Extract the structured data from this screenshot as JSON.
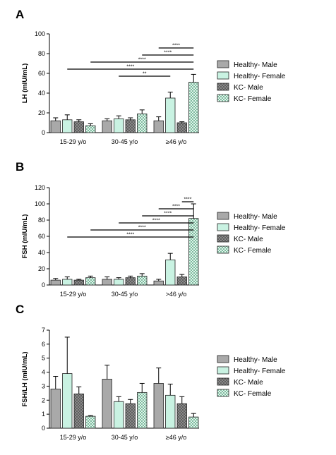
{
  "colors": {
    "healthy_male": "#a9a9a9",
    "healthy_female": "#c9f2e2",
    "kc_male": "#6c6c6c",
    "kc_female": "#c6e8d8",
    "axis": "#000000"
  },
  "legend": [
    {
      "label": "Healthy- Male",
      "style": "healthy_male"
    },
    {
      "label": "Healthy- Female",
      "style": "healthy_female"
    },
    {
      "label": "KC- Male",
      "style": "kc_male"
    },
    {
      "label": "KC- Female",
      "style": "kc_female"
    }
  ],
  "chart_data": [
    {
      "panel": "A",
      "type": "bar",
      "ylabel": "LH (mIU/mL)",
      "ylim": [
        0,
        100
      ],
      "yticks": [
        0,
        20,
        40,
        60,
        80,
        100
      ],
      "categories": [
        "15-29 y/o",
        "30-45 y/o",
        "≥46 y/o"
      ],
      "series": [
        {
          "name": "Healthy- Male",
          "values": [
            12,
            12,
            12
          ],
          "errors": [
            3,
            2,
            4
          ]
        },
        {
          "name": "Healthy- Female",
          "values": [
            13,
            14,
            35
          ],
          "errors": [
            5,
            3,
            6
          ]
        },
        {
          "name": "KC- Male",
          "values": [
            11,
            13,
            10
          ],
          "errors": [
            2,
            2,
            1
          ]
        },
        {
          "name": "KC- Female",
          "values": [
            7,
            19,
            51
          ],
          "errors": [
            2,
            4,
            8
          ]
        }
      ],
      "significance": [
        {
          "label": "****",
          "from": [
            2,
            0
          ],
          "to": [
            2,
            3
          ]
        },
        {
          "label": "****",
          "from": [
            1,
            3
          ],
          "to": [
            2,
            3
          ]
        },
        {
          "label": "****",
          "from": [
            0,
            3
          ],
          "to": [
            2,
            3
          ]
        },
        {
          "label": "****",
          "from": [
            0,
            1
          ],
          "to": [
            2,
            3
          ]
        },
        {
          "label": "**",
          "from": [
            1,
            1
          ],
          "to": [
            2,
            1
          ]
        }
      ]
    },
    {
      "panel": "B",
      "type": "bar",
      "ylabel": "FSH (mIU/mL)",
      "ylim": [
        0,
        120
      ],
      "yticks": [
        0,
        20,
        40,
        60,
        80,
        100,
        120
      ],
      "categories": [
        "15-29 y/o",
        "30-45 y/o",
        ">46 y/o"
      ],
      "series": [
        {
          "name": "Healthy- Male",
          "values": [
            6,
            7,
            5
          ],
          "errors": [
            2,
            3,
            2
          ]
        },
        {
          "name": "Healthy- Female",
          "values": [
            7,
            7,
            31
          ],
          "errors": [
            3,
            2,
            8
          ]
        },
        {
          "name": "KC- Male",
          "values": [
            6,
            9,
            10
          ],
          "errors": [
            1,
            2,
            3
          ]
        },
        {
          "name": "KC- Female",
          "values": [
            9,
            11,
            82
          ],
          "errors": [
            2,
            3,
            18
          ]
        }
      ],
      "significance": [
        {
          "label": "****",
          "from": [
            2,
            2
          ],
          "to": [
            2,
            3
          ]
        },
        {
          "label": "****",
          "from": [
            2,
            0
          ],
          "to": [
            2,
            3
          ]
        },
        {
          "label": "****",
          "from": [
            1,
            3
          ],
          "to": [
            2,
            3
          ]
        },
        {
          "label": "****",
          "from": [
            1,
            1
          ],
          "to": [
            2,
            3
          ]
        },
        {
          "label": "****",
          "from": [
            0,
            3
          ],
          "to": [
            2,
            3
          ]
        },
        {
          "label": "****",
          "from": [
            0,
            1
          ],
          "to": [
            2,
            3
          ]
        }
      ]
    },
    {
      "panel": "C",
      "type": "bar",
      "ylabel": "FSH/LH (mIU/mL)",
      "ylim": [
        0,
        7
      ],
      "yticks": [
        0,
        1,
        2,
        3,
        4,
        5,
        6,
        7
      ],
      "categories": [
        "15-29 y/o",
        "30-45 y/o",
        "≥46 y/o"
      ],
      "series": [
        {
          "name": "Healthy- Male",
          "values": [
            2.8,
            3.5,
            3.2
          ],
          "errors": [
            0.9,
            1.0,
            1.1
          ]
        },
        {
          "name": "Healthy- Female",
          "values": [
            3.9,
            1.9,
            2.35
          ],
          "errors": [
            2.6,
            0.35,
            0.8
          ]
        },
        {
          "name": "KC- Male",
          "values": [
            2.45,
            1.75,
            1.75
          ],
          "errors": [
            0.5,
            0.3,
            0.5
          ]
        },
        {
          "name": "KC- Female",
          "values": [
            0.85,
            2.55,
            0.8
          ],
          "errors": [
            0.05,
            0.65,
            0.25
          ]
        }
      ],
      "significance": []
    }
  ]
}
